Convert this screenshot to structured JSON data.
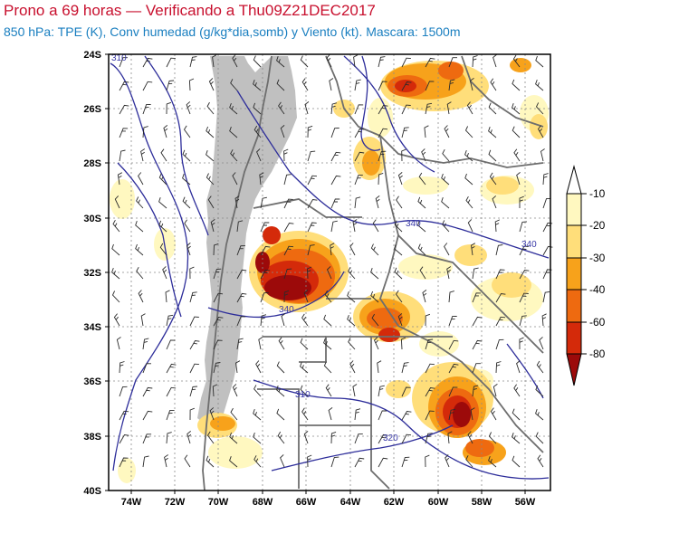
{
  "title": "Prono a 69 horas — Verificando a Thu09Z21DEC2017",
  "subtitle": "850 hPa: TPE (K), Conv humedad (g/kg*dia,somb) y Viento (kt). Mascara: 1500m",
  "map": {
    "lon_range": [
      -75,
      -55
    ],
    "lat_range": [
      -40,
      -24
    ],
    "lon_ticks": [
      "74W",
      "72W",
      "70W",
      "68W",
      "66W",
      "64W",
      "62W",
      "60W",
      "58W",
      "56W"
    ],
    "lat_ticks": [
      "24S",
      "26S",
      "28S",
      "30S",
      "32S",
      "34S",
      "36S",
      "38S",
      "40S"
    ],
    "contour_labels": [
      "310",
      "340",
      "340",
      "340",
      "310",
      "320"
    ],
    "mask_color": "#c0c0c0",
    "contour_color": "#2d2d9a"
  },
  "colorbar": {
    "labels": [
      "-10",
      "-20",
      "-30",
      "-40",
      "-60",
      "-80"
    ],
    "colors": [
      "#fff8c0",
      "#ffde7a",
      "#f7a21b",
      "#ee6a10",
      "#d42a0a",
      "#9c0a0a"
    ]
  }
}
